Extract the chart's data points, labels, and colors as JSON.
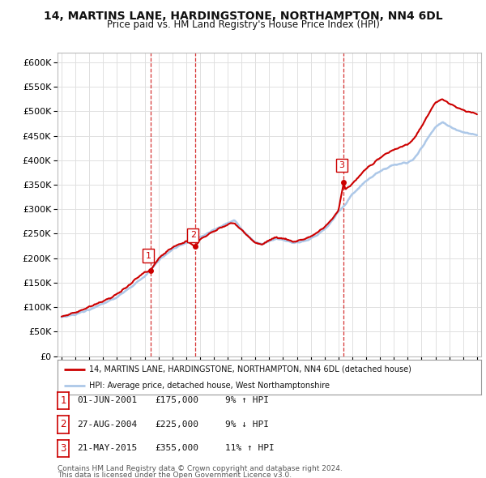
{
  "title": "14, MARTINS LANE, HARDINGSTONE, NORTHAMPTON, NN4 6DL",
  "subtitle": "Price paid vs. HM Land Registry's House Price Index (HPI)",
  "legend_line1": "14, MARTINS LANE, HARDINGSTONE, NORTHAMPTON, NN4 6DL (detached house)",
  "legend_line2": "HPI: Average price, detached house, West Northamptonshire",
  "sale_year_floats": [
    2001.42,
    2004.65,
    2015.38
  ],
  "sale_prices": [
    175000,
    225000,
    355000
  ],
  "sale_labels": [
    "1",
    "2",
    "3"
  ],
  "table_rows": [
    [
      "1",
      "01-JUN-2001",
      "£175,000",
      "9% ↑ HPI"
    ],
    [
      "2",
      "27-AUG-2004",
      "£225,000",
      "9% ↓ HPI"
    ],
    [
      "3",
      "21-MAY-2015",
      "£355,000",
      "11% ↑ HPI"
    ]
  ],
  "footer1": "Contains HM Land Registry data © Crown copyright and database right 2024.",
  "footer2": "This data is licensed under the Open Government Licence v3.0.",
  "hpi_color": "#adc8e8",
  "price_color": "#cc0000",
  "vline_color": "#cc0000",
  "background_color": "#ffffff",
  "grid_color": "#e0e0e0",
  "ylim": [
    0,
    620000
  ],
  "yticks": [
    0,
    50000,
    100000,
    150000,
    200000,
    250000,
    300000,
    350000,
    400000,
    450000,
    500000,
    550000,
    600000
  ],
  "xlim_start": 1994.7,
  "xlim_end": 2025.3
}
